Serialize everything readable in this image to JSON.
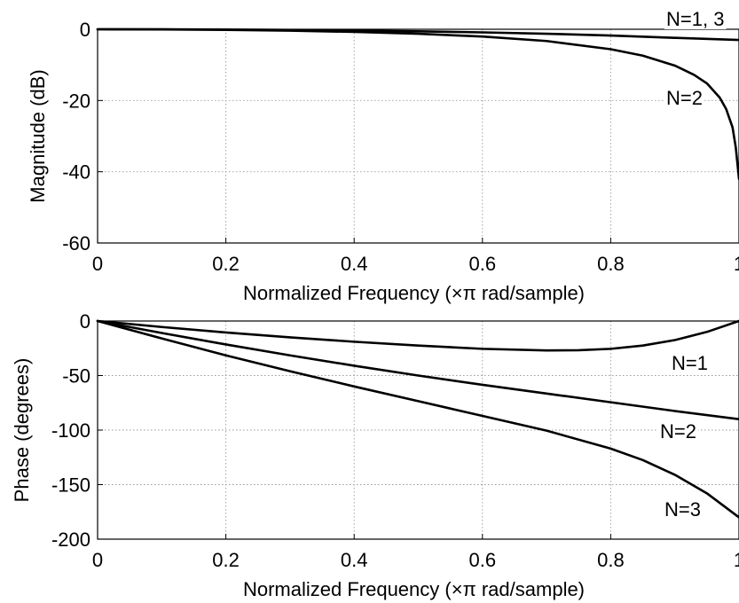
{
  "chart_data": [
    {
      "type": "line",
      "xlabel": "Normalized Frequency  (×π rad/sample)",
      "ylabel": "Magnitude (dB)",
      "xlim": [
        0,
        1
      ],
      "ylim": [
        -60,
        0
      ],
      "xticks": [
        0,
        0.2,
        0.4,
        0.6,
        0.8,
        1
      ],
      "yticks": [
        0,
        -20,
        -40,
        -60
      ],
      "xtick_labels": [
        "0",
        "0.2",
        "0.4",
        "0.6",
        "0.8",
        "1"
      ],
      "ytick_labels": [
        "0",
        "-20",
        "-40",
        "-60"
      ],
      "grid": true,
      "annotations": [
        "N=1, 3",
        "N=2"
      ],
      "series": [
        {
          "name": "N=1, 3",
          "x": [
            0,
            0.1,
            0.2,
            0.3,
            0.4,
            0.5,
            0.6,
            0.7,
            0.8,
            0.9,
            1.0
          ],
          "values": [
            0,
            -0.02,
            -0.09,
            -0.2,
            -0.36,
            -0.58,
            -0.87,
            -1.25,
            -1.75,
            -2.4,
            -3.0
          ]
        },
        {
          "name": "N=2",
          "x": [
            0,
            0.1,
            0.2,
            0.3,
            0.4,
            0.5,
            0.6,
            0.7,
            0.8,
            0.85,
            0.9,
            0.93,
            0.95,
            0.97,
            0.98,
            0.99,
            0.995,
            1.0
          ],
          "values": [
            0,
            -0.04,
            -0.17,
            -0.4,
            -0.74,
            -1.25,
            -2.05,
            -3.3,
            -5.6,
            -7.4,
            -10.2,
            -12.8,
            -15.2,
            -19.2,
            -22.4,
            -27.6,
            -33.2,
            -42
          ]
        }
      ]
    },
    {
      "type": "line",
      "xlabel": "Normalized Frequency  (×π rad/sample)",
      "ylabel": "Phase (degrees)",
      "xlim": [
        0,
        1
      ],
      "ylim": [
        -200,
        0
      ],
      "xticks": [
        0,
        0.2,
        0.4,
        0.6,
        0.8,
        1
      ],
      "yticks": [
        0,
        -50,
        -100,
        -150,
        -200
      ],
      "xtick_labels": [
        "0",
        "0.2",
        "0.4",
        "0.6",
        "0.8",
        "1"
      ],
      "ytick_labels": [
        "0",
        "-50",
        "-100",
        "-150",
        "-200"
      ],
      "grid": true,
      "annotations": [
        "N=1",
        "N=2",
        "N=3"
      ],
      "series": [
        {
          "name": "N=1",
          "x": [
            0,
            0.1,
            0.2,
            0.3,
            0.4,
            0.5,
            0.6,
            0.7,
            0.75,
            0.8,
            0.85,
            0.9,
            0.95,
            1.0
          ],
          "values": [
            0,
            -5.5,
            -10.5,
            -15,
            -19,
            -22.5,
            -25.5,
            -27,
            -26.8,
            -25.5,
            -22.5,
            -17.5,
            -10,
            0
          ]
        },
        {
          "name": "N=2",
          "x": [
            0,
            0.1,
            0.2,
            0.3,
            0.4,
            0.5,
            0.6,
            0.7,
            0.8,
            0.9,
            1.0
          ],
          "values": [
            0,
            -11,
            -21.5,
            -31.5,
            -41,
            -50,
            -58.5,
            -66.5,
            -74.5,
            -82.5,
            -90
          ]
        },
        {
          "name": "N=3",
          "x": [
            0,
            0.1,
            0.2,
            0.3,
            0.4,
            0.5,
            0.6,
            0.7,
            0.8,
            0.85,
            0.9,
            0.95,
            1.0
          ],
          "values": [
            0,
            -16,
            -31.5,
            -46,
            -60,
            -73.5,
            -87,
            -100.5,
            -117,
            -127.5,
            -141,
            -158,
            -180
          ]
        }
      ]
    }
  ]
}
